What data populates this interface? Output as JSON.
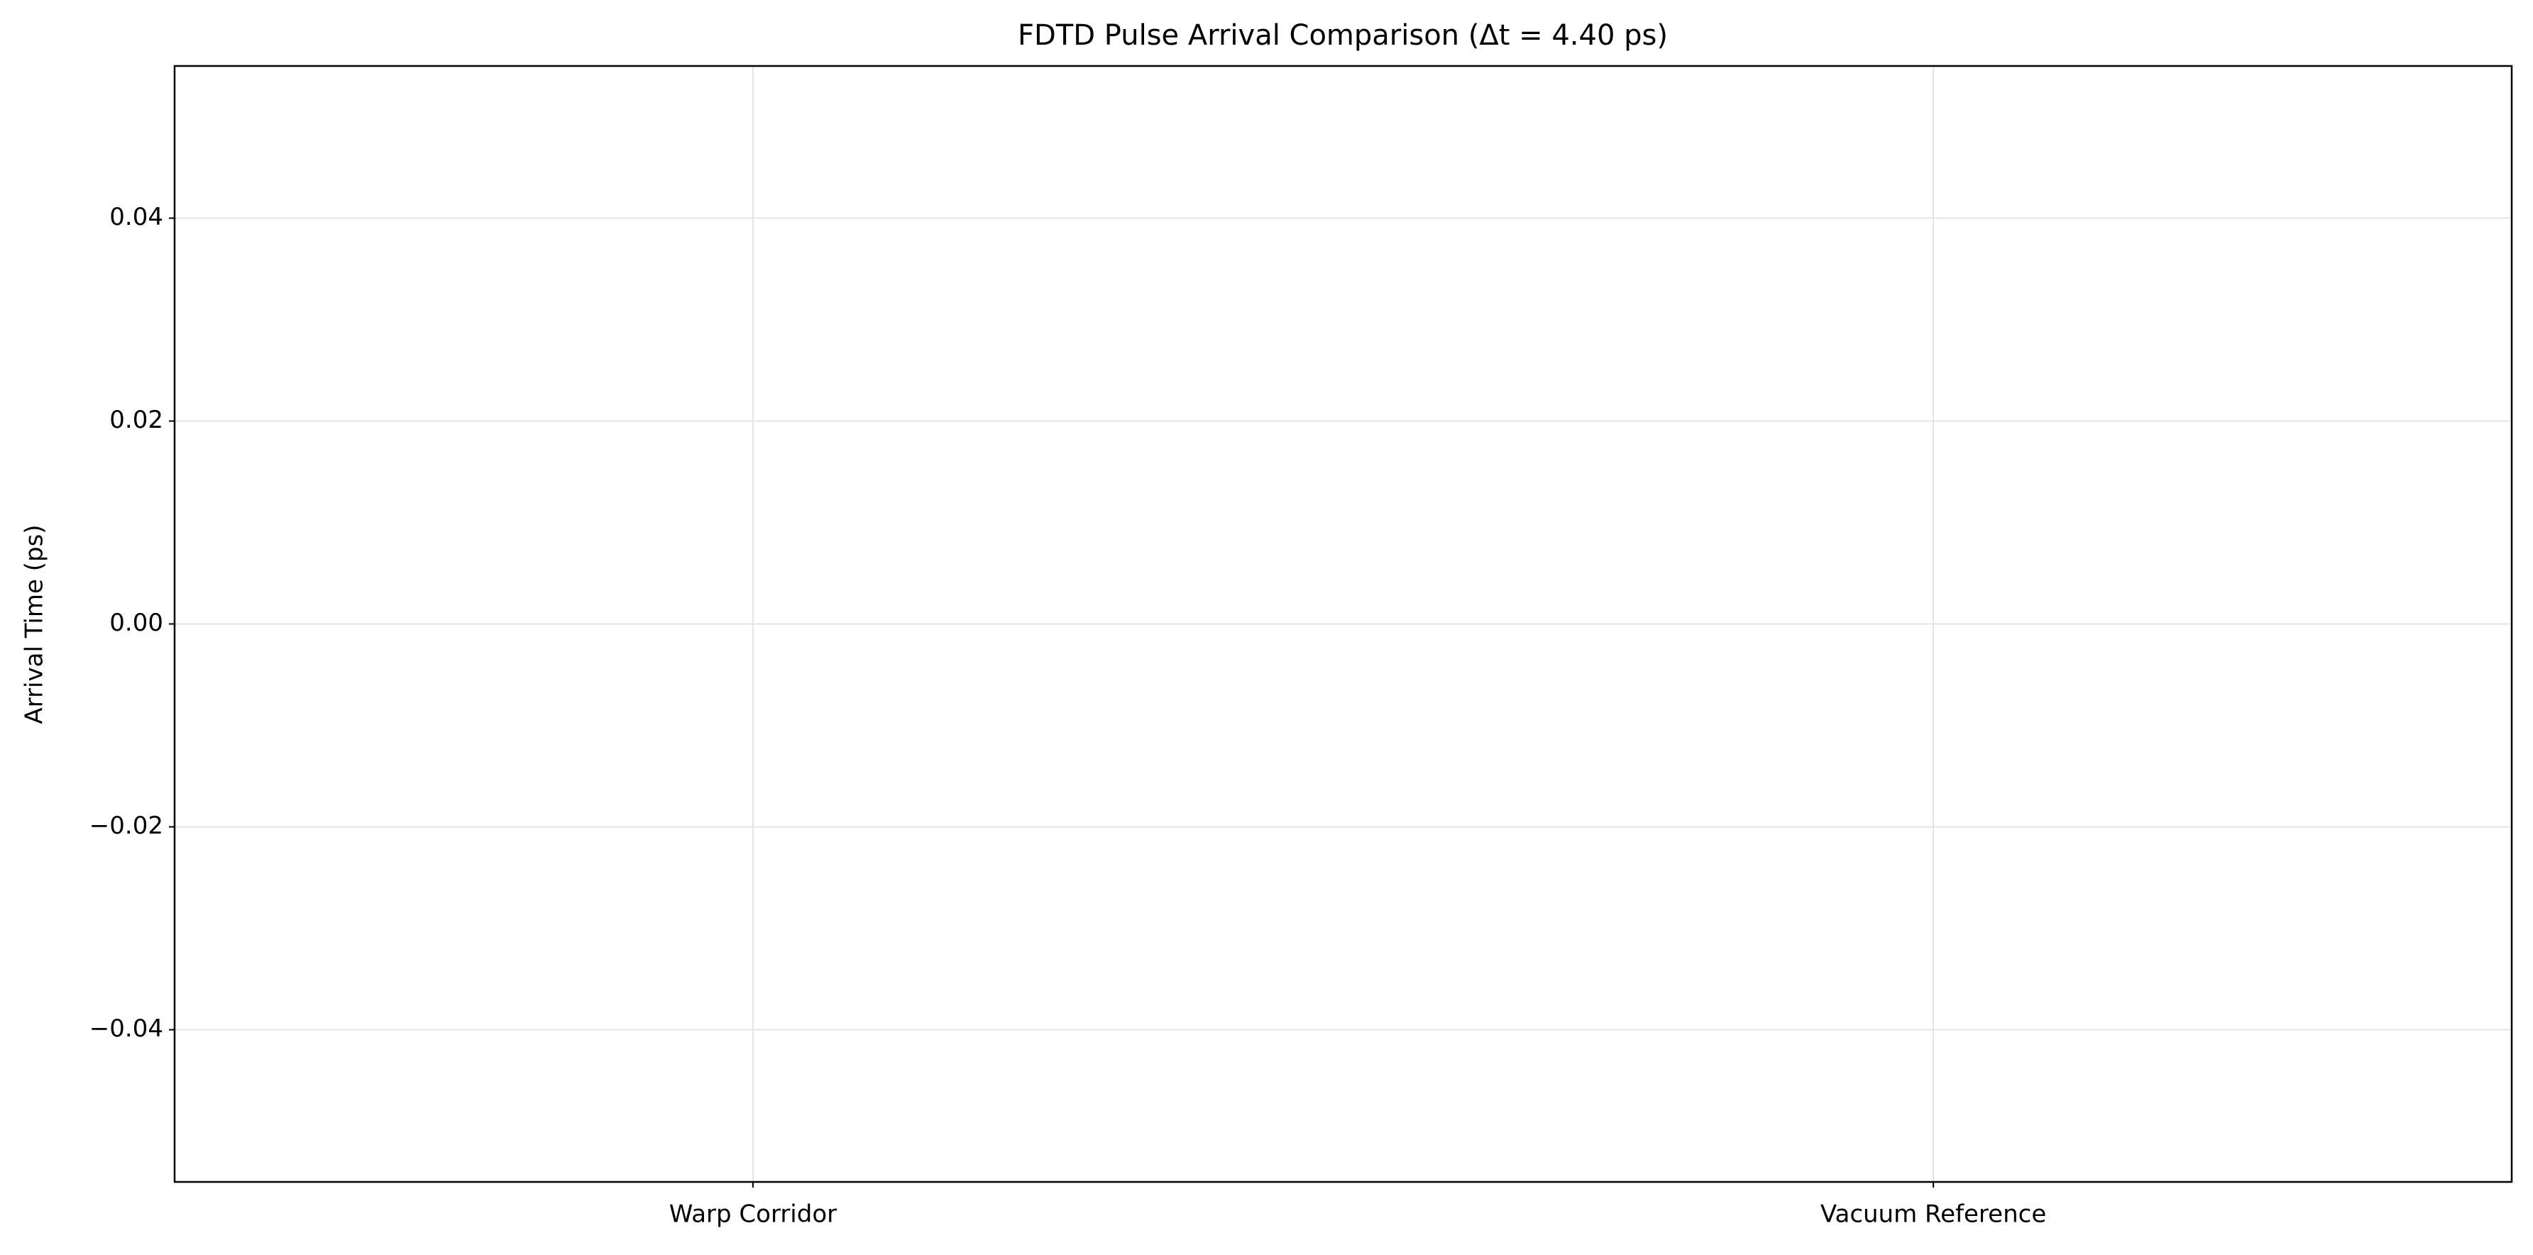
{
  "chart_data": {
    "type": "bar",
    "title": "FDTD Pulse Arrival Comparison (Δt = 4.40 ps)",
    "ylabel": "Arrival Time (ps)",
    "categories": [
      "Warp Corridor",
      "Vacuum Reference"
    ],
    "values": [
      0,
      0
    ],
    "color": "#1f77b4",
    "ylim": [
      -0.055,
      0.055
    ],
    "yticks": [
      {
        "value": -0.04,
        "label": "−0.04"
      },
      {
        "value": -0.02,
        "label": "−0.02"
      },
      {
        "value": 0,
        "label": "0.00"
      },
      0.02,
      0.04
    ],
    "grid": true
  }
}
